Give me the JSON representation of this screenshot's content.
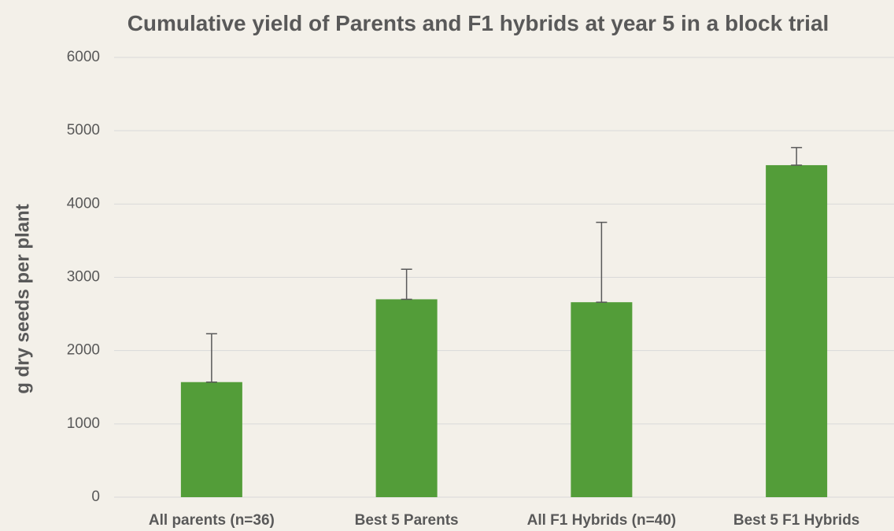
{
  "chart_data": {
    "type": "bar",
    "title": "Cumulative yield of Parents and F1 hybrids at year 5 in a block trial",
    "ylabel": "g dry seeds per plant",
    "categories": [
      "All parents (n=36)",
      "Best 5 Parents",
      "All F1 Hybrids (n=40)",
      "Best 5 F1 Hybrids"
    ],
    "values": [
      1570,
      2700,
      2660,
      4530
    ],
    "errors": [
      660,
      410,
      1090,
      240
    ],
    "color": "#539d39",
    "ylim": [
      0,
      6000
    ],
    "yticks": [
      0,
      1000,
      2000,
      3000,
      4000,
      5000,
      6000
    ],
    "grid": true
  }
}
